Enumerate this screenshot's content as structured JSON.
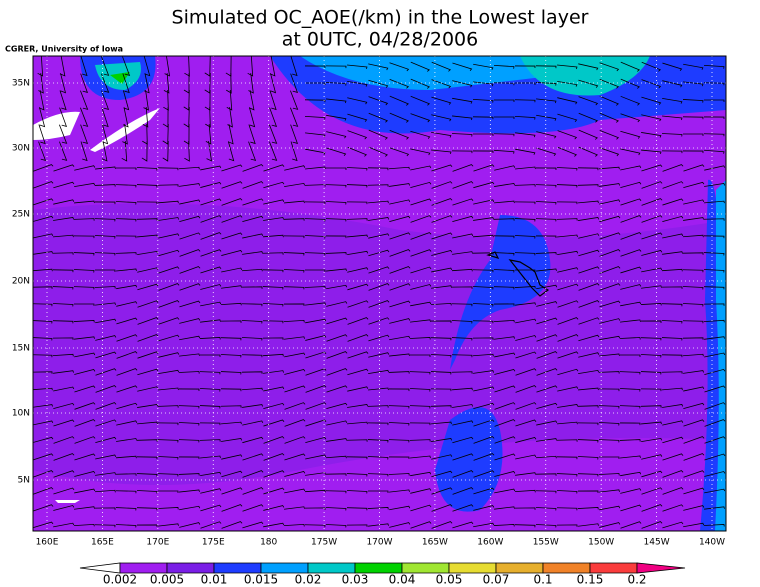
{
  "header": {
    "title_line1": "Simulated OC_AOE(/km) in the Lowest layer",
    "title_line2": "at 0UTC, 04/28/2006",
    "credit": "CGRER, University of Iowa"
  },
  "map": {
    "lat_labels": [
      "35N",
      "30N",
      "25N",
      "20N",
      "15N",
      "10N",
      "5N"
    ],
    "lon_labels": [
      "160E",
      "165E",
      "170E",
      "175E",
      "180",
      "175W",
      "170W",
      "165W",
      "160W",
      "155W",
      "150W",
      "145W",
      "140W"
    ]
  },
  "colorbar": {
    "levels": [
      0.002,
      0.005,
      0.01,
      0.015,
      0.02,
      0.03,
      0.04,
      0.05,
      0.07,
      0.1,
      0.15,
      0.2
    ],
    "colors": [
      "#ffffff",
      "#a01ef0",
      "#7a1ee6",
      "#1e3cff",
      "#00a0ff",
      "#00c8c8",
      "#00d200",
      "#a0e632",
      "#e6dc32",
      "#e6af2d",
      "#f08228",
      "#fa3c3c",
      "#f00082"
    ]
  }
}
